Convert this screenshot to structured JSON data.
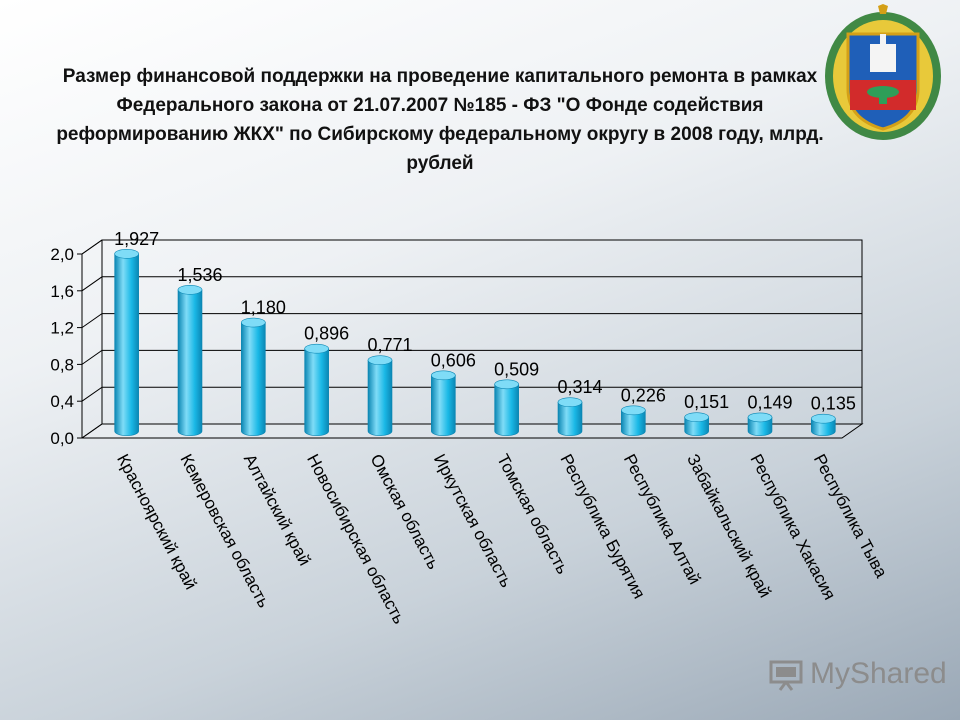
{
  "title": "Размер финансовой поддержки на проведение капитального ремонта в рамках Федерального закона от 21.07.2007 №185 - ФЗ \"О Фонде содействия реформированию ЖКХ\" по Сибирскому федеральному округу в 2008 году, млрд. рублей",
  "watermark": "MyShared",
  "colors": {
    "bar": "#19b8e6",
    "bar_dark": "#0b86b3",
    "bar_light": "#7fdcf7"
  },
  "chart_data": {
    "type": "bar",
    "title": "Размер финансовой поддержки на проведение капитального ремонта в рамках Федерального закона от 21.07.2007 №185 - ФЗ \"О Фонде содействия реформированию ЖКХ\" по Сибирскому федеральному округу в 2008 году, млрд. рублей",
    "categories": [
      "Красноярский край",
      "Кемеровская область",
      "Алтайский край",
      "Новосибирская область",
      "Омская область",
      "Иркутская область",
      "Томская область",
      "Республика Бурятия",
      "Республика Алтай",
      "Забайкальский край",
      "Республика Хакасия",
      "Республика Тыва"
    ],
    "values": [
      1.927,
      1.536,
      1.18,
      0.896,
      0.771,
      0.606,
      0.509,
      0.314,
      0.226,
      0.151,
      0.149,
      0.135
    ],
    "data_labels": [
      "1,927",
      "1,536",
      "1,180",
      "0,896",
      "0,771",
      "0,606",
      "0,509",
      "0,314",
      "0,226",
      "0,151",
      "0,149",
      "0,135"
    ],
    "yticks": [
      "0,0",
      "0,4",
      "0,8",
      "1,2",
      "1,6",
      "2,0"
    ],
    "ylim": [
      0,
      2.0
    ],
    "grid": true,
    "legend": "none",
    "style": "3d-cylinder"
  }
}
